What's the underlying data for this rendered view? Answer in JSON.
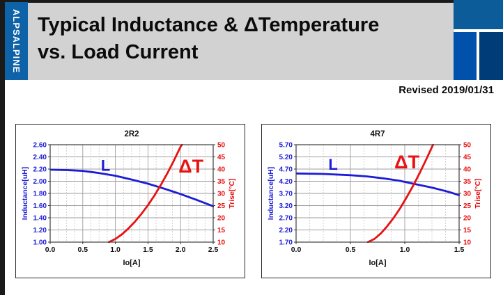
{
  "slide": {
    "logo_text": "ALPSALPINE",
    "title_line1": "Typical Inductance & ΔTemperature",
    "title_line2": "vs. Load Current",
    "revised": "Revised 2019/01/31"
  },
  "colors": {
    "logo_bar": "#0E62A8",
    "deco_top": "#0B5C99",
    "deco_left": "#0051AC",
    "deco_right": "#003C78",
    "title_bg": "#D2D2D2",
    "blue": "#1C1CD6",
    "red": "#E81212",
    "axis_text": "#111111",
    "grid_major": "#9d9d9d",
    "grid_minor": "#c6c6c6",
    "plot_border": "#3c3c3c"
  },
  "chart_data": [
    {
      "type": "line",
      "title": "2R2",
      "xlabel": "Io[A]",
      "xlim": [
        0,
        2.5
      ],
      "x_ticks": [
        "0.0",
        "0.5",
        "1.0",
        "1.5",
        "2.0",
        "2.5"
      ],
      "x_minor_step": 0.125,
      "grid": true,
      "legend": "inline-annotations",
      "left_axis": {
        "label": "Inductance[uH]",
        "lim": [
          1.0,
          2.6
        ],
        "ticks": [
          "2.60",
          "2.40",
          "2.20",
          "2.00",
          "1.80",
          "1.60",
          "1.40",
          "1.20",
          "1.00"
        ],
        "color_key": "blue"
      },
      "right_axis": {
        "label": "Trise[°C]",
        "lim": [
          10,
          50
        ],
        "ticks": [
          "50",
          "45",
          "40",
          "35",
          "30",
          "25",
          "20",
          "15",
          "10"
        ],
        "color_key": "red"
      },
      "series": [
        {
          "name": "L",
          "axis": "left",
          "color_key": "blue",
          "points": [
            [
              0,
              2.19
            ],
            [
              0.25,
              2.183
            ],
            [
              0.5,
              2.17
            ],
            [
              0.75,
              2.135
            ],
            [
              1.0,
              2.09
            ],
            [
              1.25,
              2.028
            ],
            [
              1.5,
              1.96
            ],
            [
              1.75,
              1.878
            ],
            [
              2.0,
              1.79
            ],
            [
              2.25,
              1.693
            ],
            [
              2.5,
              1.59
            ]
          ]
        },
        {
          "name": "ΔT",
          "axis": "right",
          "color_key": "red",
          "points": [
            [
              0.9,
              10
            ],
            [
              1.0,
              11.3
            ],
            [
              1.1,
              13.2
            ],
            [
              1.2,
              15.6
            ],
            [
              1.3,
              18.4
            ],
            [
              1.4,
              21.6
            ],
            [
              1.5,
              25.2
            ],
            [
              1.6,
              29.2
            ],
            [
              1.7,
              33.6
            ],
            [
              1.8,
              38.4
            ],
            [
              1.9,
              43.6
            ],
            [
              2.0,
              49.2
            ],
            [
              2.02,
              50
            ]
          ]
        }
      ],
      "annotations": [
        {
          "text": "L",
          "axis": "left",
          "x": 0.85,
          "y": 2.26,
          "color_key": "blue",
          "size": 22
        },
        {
          "text": "ΔT",
          "axis": "right",
          "x": 2.16,
          "y": 41.2,
          "color_key": "red",
          "size": 27
        }
      ]
    },
    {
      "type": "line",
      "title": "4R7",
      "xlabel": "Io[A]",
      "xlim": [
        0,
        1.5
      ],
      "x_ticks": [
        "0.0",
        "0.5",
        "1.0",
        "1.5"
      ],
      "x_minor_step": 0.125,
      "grid": true,
      "legend": "inline-annotations",
      "left_axis": {
        "label": "Inductance[uH]",
        "lim": [
          1.7,
          5.7
        ],
        "ticks": [
          "5.70",
          "5.20",
          "4.70",
          "4.20",
          "3.70",
          "3.20",
          "2.70",
          "2.20",
          "1.70"
        ],
        "color_key": "blue"
      },
      "right_axis": {
        "label": "Trise[°C]",
        "lim": [
          10,
          50
        ],
        "ticks": [
          "50",
          "45",
          "40",
          "35",
          "30",
          "25",
          "20",
          "15",
          "10"
        ],
        "color_key": "red"
      },
      "series": [
        {
          "name": "L",
          "axis": "left",
          "color_key": "blue",
          "points": [
            [
              0,
              4.52
            ],
            [
              0.25,
              4.5
            ],
            [
              0.5,
              4.45
            ],
            [
              0.65,
              4.4
            ],
            [
              0.8,
              4.32
            ],
            [
              0.95,
              4.22
            ],
            [
              1.1,
              4.08
            ],
            [
              1.25,
              3.94
            ],
            [
              1.4,
              3.77
            ],
            [
              1.5,
              3.63
            ]
          ]
        },
        {
          "name": "ΔT",
          "axis": "right",
          "color_key": "red",
          "points": [
            [
              0.66,
              10
            ],
            [
              0.72,
              11.3
            ],
            [
              0.78,
              13.6
            ],
            [
              0.84,
              16.6
            ],
            [
              0.9,
              20.1
            ],
            [
              0.96,
              24.1
            ],
            [
              1.02,
              28.6
            ],
            [
              1.08,
              33.4
            ],
            [
              1.14,
              38.6
            ],
            [
              1.2,
              44.2
            ],
            [
              1.26,
              50
            ]
          ]
        }
      ],
      "annotations": [
        {
          "text": "L",
          "axis": "left",
          "x": 0.34,
          "y": 4.89,
          "color_key": "blue",
          "size": 22
        },
        {
          "text": "ΔT",
          "axis": "right",
          "x": 1.02,
          "y": 42.9,
          "color_key": "red",
          "size": 27
        }
      ]
    }
  ]
}
